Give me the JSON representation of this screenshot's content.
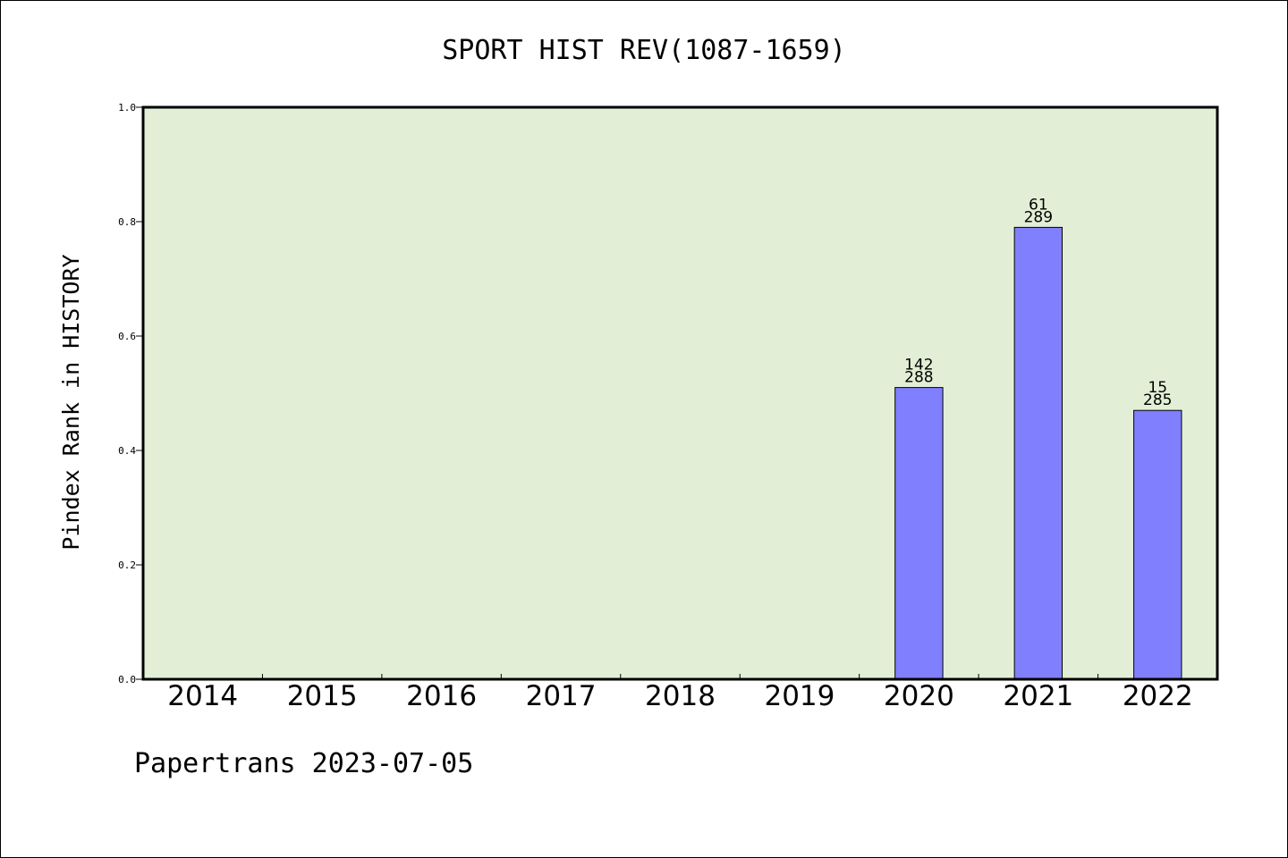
{
  "chart_data": {
    "type": "bar",
    "title": "SPORT HIST REV(1087-1659)",
    "ylabel": "Pindex Rank in HISTORY",
    "xlabel": "",
    "categories": [
      "2014",
      "2015",
      "2016",
      "2017",
      "2018",
      "2019",
      "2020",
      "2021",
      "2022"
    ],
    "values": [
      null,
      null,
      null,
      null,
      null,
      null,
      0.51,
      0.79,
      0.47
    ],
    "bar_labels": [
      {
        "category": "2020",
        "rank": "142",
        "total": "288"
      },
      {
        "category": "2021",
        "rank": "61",
        "total": "289"
      },
      {
        "category": "2022",
        "rank": "15",
        "total": "285"
      }
    ],
    "ylim": [
      0,
      1.0
    ],
    "yticks": [
      "0.0",
      "0.2",
      "0.4",
      "0.6",
      "0.8",
      "1.0"
    ],
    "grid": false,
    "colors": {
      "plot_background": "#e2efd6",
      "bar_fill": "#8080ff",
      "bar_stroke": "#000000"
    }
  },
  "footer": "Papertrans 2023-07-05"
}
